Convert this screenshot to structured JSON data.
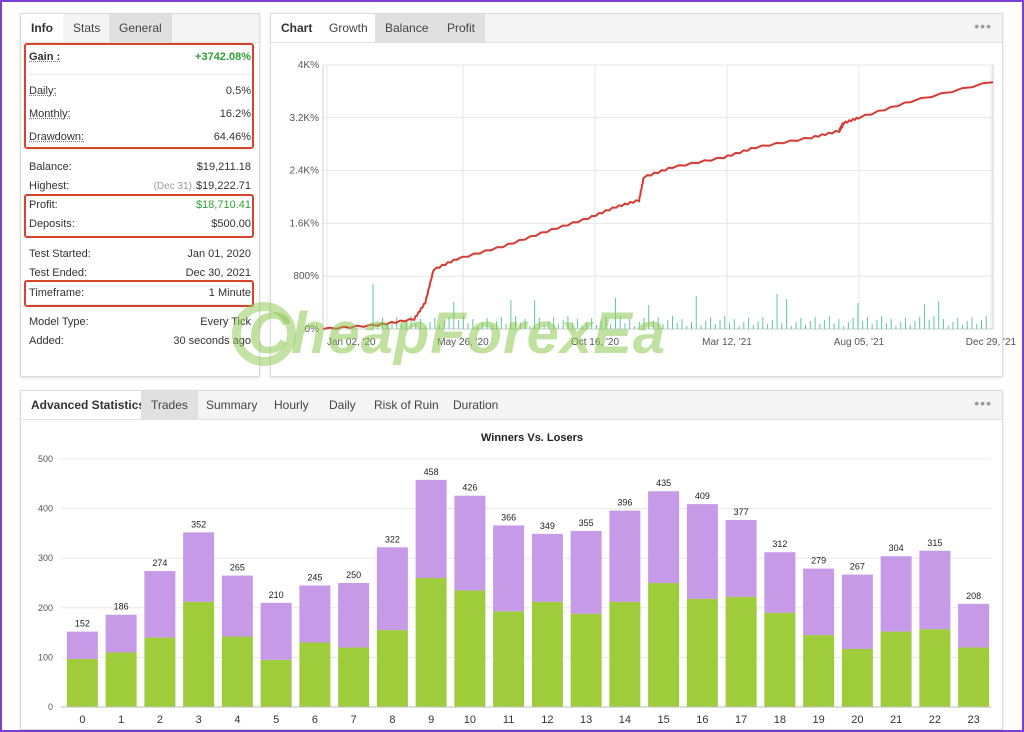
{
  "left_panel": {
    "tabs": [
      "Info",
      "Stats",
      "General"
    ],
    "rows": [
      {
        "label": "Gain :",
        "value": "+3742.08%",
        "green": true,
        "bold": true,
        "underline": true
      },
      {
        "label": "Daily:",
        "value": "0.5%",
        "underline": true
      },
      {
        "label": "Monthly:",
        "value": "16.2%",
        "underline": true
      },
      {
        "label": "Drawdown:",
        "value": "64.46%",
        "underline": true
      },
      {
        "label": "Balance:",
        "value": "$19,211.18"
      },
      {
        "label": "Highest:",
        "value": "$19,222.71",
        "sub": "(Dec 31)"
      },
      {
        "label": "Profit:",
        "value": "$18,710.41",
        "green": true
      },
      {
        "label": "Deposits:",
        "value": "$500.00"
      },
      {
        "label": "Test Started:",
        "value": "Jan 01, 2020"
      },
      {
        "label": "Test Ended:",
        "value": "Dec 30, 2021"
      },
      {
        "label": "Timeframe:",
        "value": "1 Minute"
      },
      {
        "label": "Model Type:",
        "value": "Every Tick"
      },
      {
        "label": "Added:",
        "value": "30 seconds ago"
      }
    ]
  },
  "growth_panel": {
    "tabs": [
      "Chart",
      "Growth",
      "Balance",
      "Profit"
    ],
    "menu_glyph": "•••"
  },
  "stats_panel": {
    "tabs": [
      "Advanced Statistics",
      "Trades",
      "Summary",
      "Hourly",
      "Daily",
      "Risk of Ruin",
      "Duration"
    ],
    "menu_glyph": "•••"
  },
  "watermark": "CheapForexEa",
  "colors": {
    "line": "#d63b33",
    "winners": "#9fcc3b",
    "losers": "#c69ae6",
    "volume": "#5fc7a0",
    "highlight": "#d6452b"
  },
  "chart_data": [
    {
      "type": "line",
      "y_tick_labels": [
        "0%",
        "800%",
        "1.6K%",
        "2.4K%",
        "3.2K%",
        "4K%"
      ],
      "x_tick_labels": [
        "Jan 02, '20",
        "May 26, '20",
        "Oct 16, '20",
        "Mar 12, '21",
        "Aug 05, '21",
        "Dec 29, '21"
      ],
      "ylim": [
        0,
        4000
      ],
      "x": [
        "2020-01-02",
        "2020-03-01",
        "2020-04-10",
        "2020-04-22",
        "2020-05-01",
        "2020-05-26",
        "2020-07-15",
        "2020-09-01",
        "2020-10-16",
        "2020-11-15",
        "2020-12-10",
        "2020-12-15",
        "2021-01-15",
        "2021-03-12",
        "2021-04-15",
        "2021-06-15",
        "2021-07-15",
        "2021-07-20",
        "2021-08-05",
        "2021-10-01",
        "2021-12-29"
      ],
      "y": [
        0,
        60,
        150,
        400,
        900,
        1060,
        1250,
        1480,
        1680,
        1850,
        1950,
        2300,
        2450,
        2600,
        2750,
        2900,
        3000,
        3120,
        3200,
        3450,
        3750
      ],
      "series": [
        {
          "name": "Growth",
          "color": "#d63b33"
        }
      ],
      "grid": true
    },
    {
      "type": "bar",
      "title": "Winners Vs. Losers",
      "categories": [
        "0",
        "1",
        "2",
        "3",
        "4",
        "5",
        "6",
        "7",
        "8",
        "9",
        "10",
        "11",
        "12",
        "13",
        "14",
        "15",
        "16",
        "17",
        "18",
        "19",
        "20",
        "21",
        "22",
        "23"
      ],
      "series": [
        {
          "name": "Winners",
          "values": [
            97,
            110,
            140,
            212,
            142,
            95,
            130,
            120,
            155,
            260,
            235,
            193,
            212,
            188,
            212,
            250,
            218,
            222,
            190,
            145,
            117,
            152,
            157,
            120
          ]
        },
        {
          "name": "Losers",
          "values": [
            55,
            76,
            134,
            140,
            123,
            115,
            115,
            130,
            167,
            198,
            191,
            173,
            137,
            167,
            184,
            185,
            191,
            155,
            122,
            134,
            150,
            152,
            158,
            88
          ]
        }
      ],
      "totals": [
        152,
        186,
        274,
        352,
        265,
        210,
        245,
        250,
        322,
        458,
        426,
        366,
        349,
        355,
        396,
        435,
        409,
        377,
        312,
        279,
        267,
        304,
        315,
        208
      ],
      "y_ticks": [
        0,
        100,
        200,
        300,
        400,
        500
      ],
      "ylim": [
        0,
        500
      ],
      "grid": true
    }
  ]
}
